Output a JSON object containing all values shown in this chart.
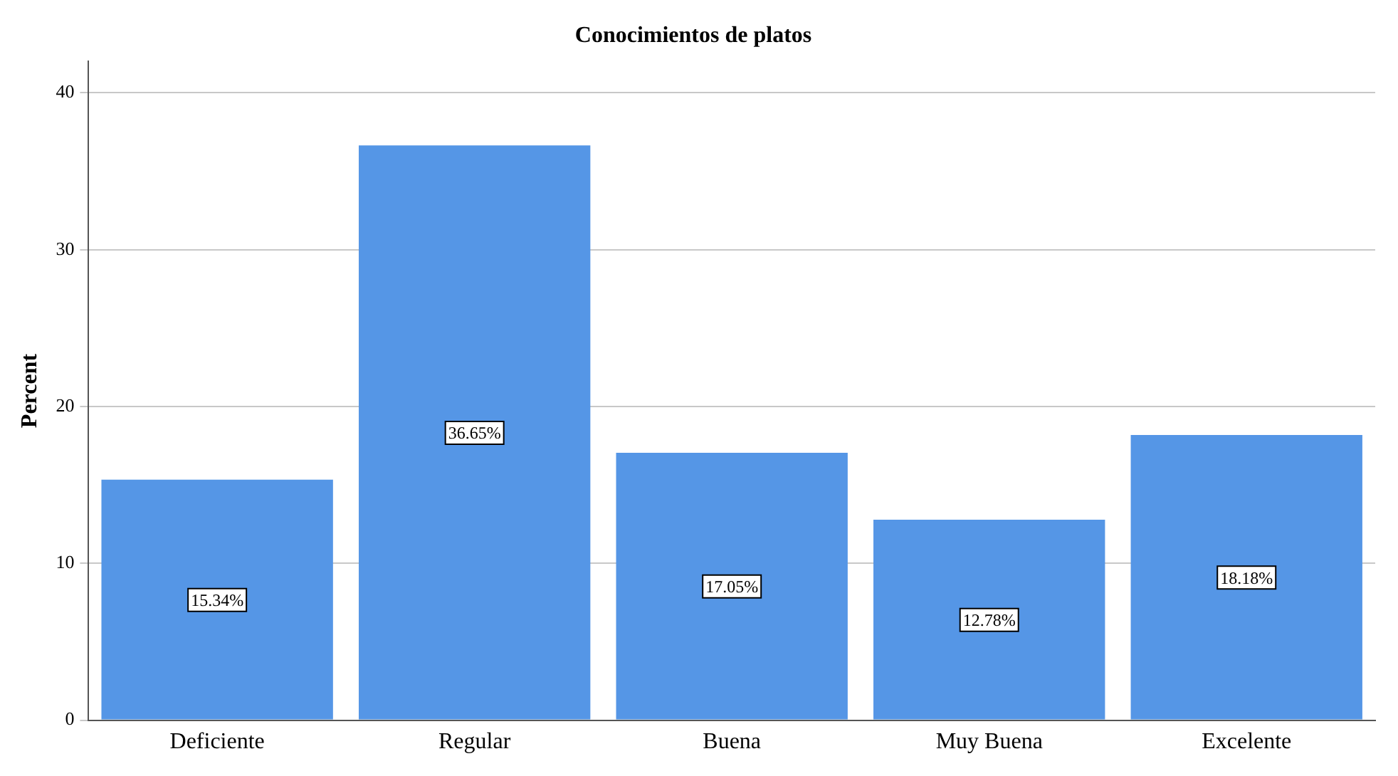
{
  "chart_data": {
    "type": "bar",
    "title": "Conocimientos de platos",
    "ylabel": "Percent",
    "categories": [
      "Deficiente",
      "Regular",
      "Buena",
      "Muy Buena",
      "Excelente"
    ],
    "values": [
      15.34,
      36.65,
      17.05,
      12.78,
      18.18
    ],
    "value_labels": [
      "15.34%",
      "36.65%",
      "17.05%",
      "12.78%",
      "18.18%"
    ],
    "color": "#5596e6",
    "ylim": [
      0,
      42
    ],
    "yticks": [
      0,
      10,
      20,
      30,
      40
    ],
    "grid": "y",
    "legend": false
  }
}
